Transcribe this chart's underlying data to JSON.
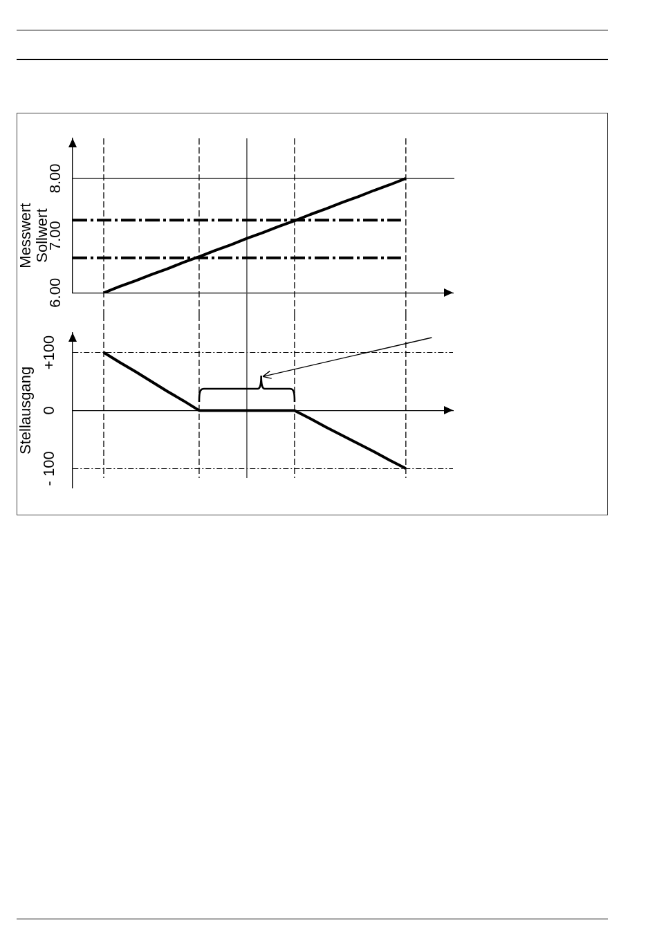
{
  "chart_data": [
    {
      "type": "line",
      "ylabel": "Messwert\nSollwert",
      "categories": [
        null,
        null,
        null,
        null,
        null,
        null,
        null,
        null,
        null,
        null,
        null,
        null,
        null,
        null,
        null,
        null,
        null,
        null,
        null,
        null
      ],
      "series": [
        {
          "color": "#000000",
          "values": [
            6,
            6.11,
            6.21,
            6.32,
            6.42,
            6.53,
            6.63,
            6.74,
            6.84,
            6.95,
            7.05,
            7.16,
            7.26,
            7.37,
            7.47,
            7.58,
            7.68,
            7.79,
            7.89,
            8
          ]
        }
      ],
      "ylim": [
        6,
        8.7
      ],
      "yticks": [
        {
          "value": 6,
          "label": "6.00"
        },
        {
          "value": 7,
          "label": "7.00"
        },
        {
          "value": 8,
          "label": "8.00"
        }
      ],
      "ref_lines": [
        {
          "axis": "y",
          "value": 8,
          "line_style": "solid",
          "color": "#000000"
        },
        {
          "axis": "y",
          "value": 7.27,
          "line_style": "dashed",
          "color": "#000000"
        },
        {
          "axis": "y",
          "value": 6.61,
          "line_style": "dashed",
          "color": "#000000"
        }
      ],
      "grid": "x",
      "tick_labels": "y"
    },
    {
      "type": "line",
      "ylabel": "Stellausgang",
      "categories": [
        null,
        null,
        null,
        null,
        null,
        null,
        null,
        null,
        null,
        null,
        null,
        null,
        null,
        null,
        null,
        null,
        null,
        null,
        null,
        null
      ],
      "series": [
        {
          "color": "#000000",
          "values": [
            100,
            83,
            67,
            50,
            33,
            17,
            0,
            0,
            0,
            0,
            0,
            0,
            0,
            -14,
            -29,
            -43,
            -57,
            -71,
            -86,
            -100
          ]
        }
      ],
      "ylim": [
        -133,
        134
      ],
      "yticks": [
        {
          "value": 100,
          "label": "+100"
        },
        0,
        {
          "value": -100,
          "label": "- 100"
        }
      ],
      "grid": true,
      "tick_labels": "y"
    }
  ]
}
